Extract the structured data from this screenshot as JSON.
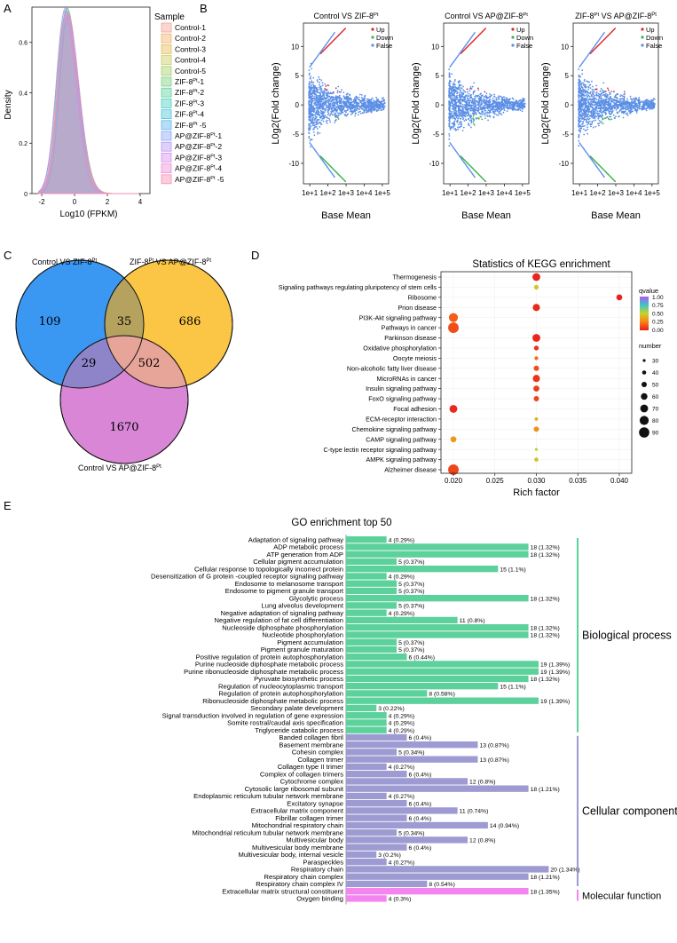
{
  "panels": {
    "A": "A",
    "B": "B",
    "C": "C",
    "D": "D",
    "E": "E"
  },
  "panelA": {
    "ylabel": "Density",
    "xlabel": "Log10 (FPKM)",
    "xticks": [
      "-2",
      "0",
      "2",
      "4"
    ],
    "yticks": [
      "0",
      "0.2",
      "0.4",
      "0.6"
    ],
    "legend_title": "Sample",
    "legend": [
      {
        "label": "Control-1",
        "color": "#f4a39a"
      },
      {
        "label": "Control-2",
        "color": "#efb36e"
      },
      {
        "label": "Control-3",
        "color": "#e0bc5c"
      },
      {
        "label": "Control-4",
        "color": "#cccc66"
      },
      {
        "label": "Control-5",
        "color": "#a9cf6c"
      },
      {
        "label": "ZIF-8",
        "sup": "Pt",
        "suffix": "-1",
        "color": "#7fcf7f"
      },
      {
        "label": "ZIF-8",
        "sup": "Pt",
        "suffix": "-2",
        "color": "#5fd0a0"
      },
      {
        "label": "ZIF-8",
        "sup": "Pt",
        "suffix": "-3",
        "color": "#4fcfc0"
      },
      {
        "label": "ZIF-8",
        "sup": "Pt",
        "suffix": "-4",
        "color": "#4fc6dc"
      },
      {
        "label": "ZIF-8",
        "sup": "Pt",
        "suffix": " -5",
        "color": "#5fb6ee"
      },
      {
        "label": "AP@ZIF-8",
        "sup": "Pt",
        "suffix": "-1",
        "color": "#8fa8f5"
      },
      {
        "label": "AP@ZIF-8",
        "sup": "Pt",
        "suffix": "-2",
        "color": "#b39af5"
      },
      {
        "label": "AP@ZIF-8",
        "sup": "Pt",
        "suffix": "-3",
        "color": "#d88fee"
      },
      {
        "label": "AP@ZIF-8",
        "sup": "Pt",
        "suffix": "-4",
        "color": "#ee8fd4"
      },
      {
        "label": "AP@ZIF-8",
        "sup": "Pt",
        "suffix": " -5",
        "color": "#f58fb5"
      }
    ]
  },
  "panelB": {
    "plots": [
      {
        "t1": "Control VS ZIF-8",
        "t1s": "Pt",
        "t2": "",
        "t2s": ""
      },
      {
        "t1": "Control VS AP@ZIF-8",
        "t1s": "Pt",
        "t2": "",
        "t2s": ""
      },
      {
        "t1": "ZIF-8",
        "t1s": "Pt",
        "t2": " VS AP@ZIF-8",
        "t2s": "Pt"
      }
    ],
    "ylabel": "L0g2(Fold change)",
    "xlabel": "Base Mean",
    "xticks": [
      "1e+1",
      "1e+2",
      "1e+3",
      "1e+4",
      "1e+5"
    ],
    "yticks": [
      "10",
      "5",
      "0",
      "-5",
      "-10"
    ],
    "legend": [
      {
        "label": "Up",
        "color": "#e3262b"
      },
      {
        "label": "Down",
        "color": "#3cb44b"
      },
      {
        "label": "False",
        "color": "#5b8fe6"
      }
    ]
  },
  "panelC": {
    "label_left": "Control VS ZIF-8",
    "label_left_sup": "Pt",
    "label_right": "ZIF-8",
    "label_right_sup": "Pt",
    "label_right2": " VS AP@ZIF-8",
    "label_right2_sup": "Pt",
    "label_bottom": "Control VS AP@ZIF-8",
    "label_bottom_sup": "Pt",
    "counts": {
      "left_only": "109",
      "left_right": "35",
      "right_only": "686",
      "left_bottom": "29",
      "right_bottom": "502",
      "bottom_only": "1670"
    },
    "colors": {
      "left": "#3a98f2",
      "right": "#fbc646",
      "bottom": "#d986d6"
    }
  },
  "chart_data": [
    {
      "type": "scatter",
      "title": "Statistics of KEGG enrichment",
      "xlabel": "Rich factor",
      "xlim": [
        0.0185,
        0.0415
      ],
      "xticks": [
        "0.020",
        "0.025",
        "0.030",
        "0.035",
        "0.040"
      ],
      "colorbar": {
        "title": "qvalue",
        "ticks": [
          "1.00",
          "0.75",
          "0.50",
          "0.25",
          "0.00"
        ]
      },
      "size_legend": {
        "title": "number",
        "values": [
          "30",
          "40",
          "50",
          "60",
          "70",
          "80",
          "90"
        ]
      },
      "points": [
        {
          "term": "Thermogenesis",
          "x": 0.03,
          "q": 0.02,
          "n": 70
        },
        {
          "term": "Signaling pathways regulating pluripotency of stem cells",
          "x": 0.03,
          "q": 0.48,
          "n": 45
        },
        {
          "term": "Ribosome",
          "x": 0.04,
          "q": 0.01,
          "n": 55
        },
        {
          "term": "Prion disease",
          "x": 0.03,
          "q": 0.03,
          "n": 65
        },
        {
          "term": "PI3K-Akt signaling pathway",
          "x": 0.02,
          "q": 0.16,
          "n": 80
        },
        {
          "term": "Pathways in cancer",
          "x": 0.02,
          "q": 0.12,
          "n": 92
        },
        {
          "term": "Parkinson disease",
          "x": 0.03,
          "q": 0.02,
          "n": 70
        },
        {
          "term": "Oxidative phosphorylation",
          "x": 0.03,
          "q": 0.05,
          "n": 45
        },
        {
          "term": "Oocyte meiosis",
          "x": 0.03,
          "q": 0.2,
          "n": 38
        },
        {
          "term": "Non-alcoholic fatty liver disease",
          "x": 0.03,
          "q": 0.12,
          "n": 50
        },
        {
          "term": "MicroRNAs in cancer",
          "x": 0.03,
          "q": 0.06,
          "n": 65
        },
        {
          "term": "Insulin signaling pathway",
          "x": 0.03,
          "q": 0.08,
          "n": 55
        },
        {
          "term": "FoxO signaling pathway",
          "x": 0.03,
          "q": 0.1,
          "n": 50
        },
        {
          "term": "Focal adhesion",
          "x": 0.02,
          "q": 0.03,
          "n": 70
        },
        {
          "term": "ECM-receptor interaction",
          "x": 0.03,
          "q": 0.42,
          "n": 35
        },
        {
          "term": "Chemokine signaling pathway",
          "x": 0.03,
          "q": 0.3,
          "n": 50
        },
        {
          "term": "CAMP signaling pathway",
          "x": 0.02,
          "q": 0.32,
          "n": 55
        },
        {
          "term": "C-type lectin receptor signaling pathway",
          "x": 0.03,
          "q": 0.52,
          "n": 30
        },
        {
          "term": "AMPK signaling pathway",
          "x": 0.03,
          "q": 0.45,
          "n": 40
        },
        {
          "term": "Alzheimer disease",
          "x": 0.02,
          "q": 0.1,
          "n": 92
        }
      ]
    },
    {
      "type": "bar",
      "title": "GO enrichment top 50",
      "orientation": "horizontal",
      "groups": [
        {
          "name": "Biological process",
          "color": "#5dd19b"
        },
        {
          "name": "Cellular component",
          "color": "#9d9bd2"
        },
        {
          "name": "Molecular function",
          "color": "#f484f0"
        }
      ],
      "bars": [
        {
          "term": "Adaptation  of  signaling  pathway",
          "value": 4,
          "label": "4 (0.29%)",
          "g": 0
        },
        {
          "term": "ADP  metabolic  process",
          "value": 18,
          "label": "18 (1.32%)",
          "g": 0
        },
        {
          "term": "ATP  generation  from  ADP",
          "value": 18,
          "label": "18 (1.32%)",
          "g": 0
        },
        {
          "term": "Cellular  pigment  accumulation",
          "value": 5,
          "label": "5 (0.37%)",
          "g": 0
        },
        {
          "term": "Cellular  response  to  topologically  incorrect  protein",
          "value": 15,
          "label": "15 (1.1%)",
          "g": 0
        },
        {
          "term": "Desensitization  of  G protein -coupled  receptor  signaling  pathway",
          "value": 4,
          "label": "4 (0.29%)",
          "g": 0
        },
        {
          "term": "Endosome  to melanosome  transport",
          "value": 5,
          "label": "5 (0.37%)",
          "g": 0
        },
        {
          "term": "Endosome  to pigment  granule  transport",
          "value": 5,
          "label": "5 (0.37%)",
          "g": 0
        },
        {
          "term": "Glycolytic  process",
          "value": 18,
          "label": "18 (1.32%)",
          "g": 0
        },
        {
          "term": "Lung  alveolus  development",
          "value": 5,
          "label": "5 (0.37%)",
          "g": 0
        },
        {
          "term": "Negative  adaptation  of  signaling  pathway",
          "value": 4,
          "label": "4 (0.29%)",
          "g": 0
        },
        {
          "term": "Negative  regulation  of  fat cell  differentiation",
          "value": 11,
          "label": "11 (0.8%)",
          "g": 0
        },
        {
          "term": "Nucleoside  diphosphate  phosphorylation",
          "value": 18,
          "label": "18 (1.32%)",
          "g": 0
        },
        {
          "term": "Nucleotide  phosphorylation",
          "value": 18,
          "label": "18 (1.32%)",
          "g": 0
        },
        {
          "term": "Pigment  accumulation",
          "value": 5,
          "label": "5 (0.37%)",
          "g": 0
        },
        {
          "term": "Pigment  granule  maturation",
          "value": 5,
          "label": "5 (0.37%)",
          "g": 0
        },
        {
          "term": "Positive  regulation  of  protein  autophosphorylation",
          "value": 6,
          "label": "6 (0.44%)",
          "g": 0
        },
        {
          "term": "Purine nucleoside  diphosphate  metabolic  process",
          "value": 19,
          "label": "19 (1.39%)",
          "g": 0
        },
        {
          "term": "Purine  ribonucleoside  diphosphate  metabolic  process",
          "value": 19,
          "label": "19 (1.39%)",
          "g": 0
        },
        {
          "term": "Pyruvate  biosynthetic  process",
          "value": 18,
          "label": "18 (1.32%)",
          "g": 0
        },
        {
          "term": "Regulation  of nucleocytoplasmic  transport",
          "value": 15,
          "label": "15 (1.1%)",
          "g": 0
        },
        {
          "term": "Regulation  of protein  autophosphorylation",
          "value": 8,
          "label": "8 (0.58%)",
          "g": 0
        },
        {
          "term": "Ribonucleoside  diphosphate  metabolic  process",
          "value": 19,
          "label": "19 (1.39%)",
          "g": 0
        },
        {
          "term": "Secondary  palate  development",
          "value": 3,
          "label": "3 (0.22%)",
          "g": 0
        },
        {
          "term": "Signal  transduction  involved  in regulation  of gene expression",
          "value": 4,
          "label": "4 (0.29%)",
          "g": 0
        },
        {
          "term": "Somite  rostral/caudal  axis  specification",
          "value": 4,
          "label": "4 (0.29%)",
          "g": 0
        },
        {
          "term": "Triglyceride  catabolic  process",
          "value": 4,
          "label": "4 (0.29%)",
          "g": 0
        },
        {
          "term": "Banded  collagen  fibril",
          "value": 6,
          "label": "6 (0.4%)",
          "g": 1
        },
        {
          "term": "Basement  membrane",
          "value": 13,
          "label": "13 (0.87%)",
          "g": 1
        },
        {
          "term": "Cohesin  complex",
          "value": 5,
          "label": "5 (0.34%)",
          "g": 1
        },
        {
          "term": "Collagen  trimer",
          "value": 13,
          "label": "13 (0.87%)",
          "g": 1
        },
        {
          "term": "Collagen  type II trimer",
          "value": 4,
          "label": "4 (0.27%)",
          "g": 1
        },
        {
          "term": "Complex  of collagen  trimers",
          "value": 6,
          "label": "6 (0.4%)",
          "g": 1
        },
        {
          "term": "Cytochrome  complex",
          "value": 12,
          "label": "12 (0.8%)",
          "g": 1
        },
        {
          "term": "Cytosolic  large  ribosomal  subunit",
          "value": 18,
          "label": "18 (1.21%)",
          "g": 1
        },
        {
          "term": "Endoplasmic  reticulum  tubular  network  membrane",
          "value": 4,
          "label": "4 (0.27%)",
          "g": 1
        },
        {
          "term": "Excitatory  synapse",
          "value": 6,
          "label": "6 (0.4%)",
          "g": 1
        },
        {
          "term": "Extracellular  matrix  component",
          "value": 11,
          "label": "11 (0.74%)",
          "g": 1
        },
        {
          "term": "Fibrillar  collagen  trimer",
          "value": 6,
          "label": "6 (0.4%)",
          "g": 1
        },
        {
          "term": "Mitochondrial  respiratory  chain",
          "value": 14,
          "label": "14 (0.94%)",
          "g": 1
        },
        {
          "term": "Mitochondrial  reticulum tubular network membrane",
          "value": 5,
          "label": "5 (0.34%)",
          "g": 1
        },
        {
          "term": "Multivesicular  body",
          "value": 12,
          "label": "12 (0.8%)",
          "g": 1
        },
        {
          "term": "Multivesicular  body  membrane",
          "value": 6,
          "label": "6 (0.4%)",
          "g": 1
        },
        {
          "term": "Multivesicular  body, internal  vesicle",
          "value": 3,
          "label": "3 (0.2%)",
          "g": 1
        },
        {
          "term": "Paraspeckles",
          "value": 4,
          "label": "4 (0.27%)",
          "g": 1
        },
        {
          "term": "Respiratory  chain",
          "value": 20,
          "label": "20 (1.34%)",
          "g": 1
        },
        {
          "term": "Respiratory  chain  complex",
          "value": 18,
          "label": "18 (1.21%)",
          "g": 1
        },
        {
          "term": "Respiratory  chain  complex  IV",
          "value": 8,
          "label": "8 (0.54%)",
          "g": 1
        },
        {
          "term": "Extracellular  matrix structural  constituent",
          "value": 18,
          "label": "18 (1.35%)",
          "g": 2
        },
        {
          "term": "Oxygen  binding",
          "value": 4,
          "label": "4 (0.3%)",
          "g": 2
        }
      ]
    }
  ]
}
